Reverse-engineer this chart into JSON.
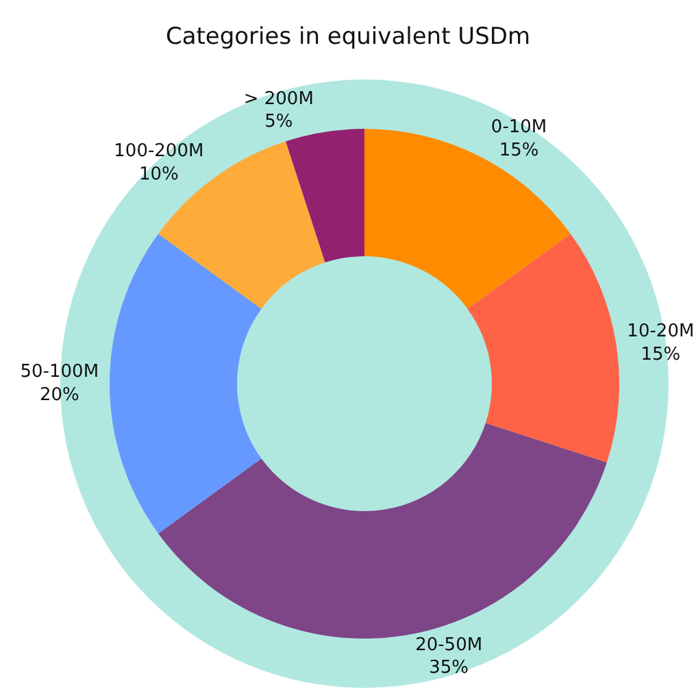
{
  "chart_data": {
    "type": "donut",
    "title": "Categories in equivalent USDm",
    "categories": [
      "0-10M",
      "10-20M",
      "20-50M",
      "50-100M",
      "100-200M",
      "> 200M"
    ],
    "values": [
      15,
      15,
      35,
      20,
      10,
      5
    ],
    "value_labels": [
      "15%",
      "15%",
      "35%",
      "20%",
      "10%",
      "5%"
    ],
    "colors": [
      "#ff8c00",
      "#ff6347",
      "#7e4587",
      "#6699ff",
      "#ffab3a",
      "#922170"
    ],
    "legend": false
  }
}
